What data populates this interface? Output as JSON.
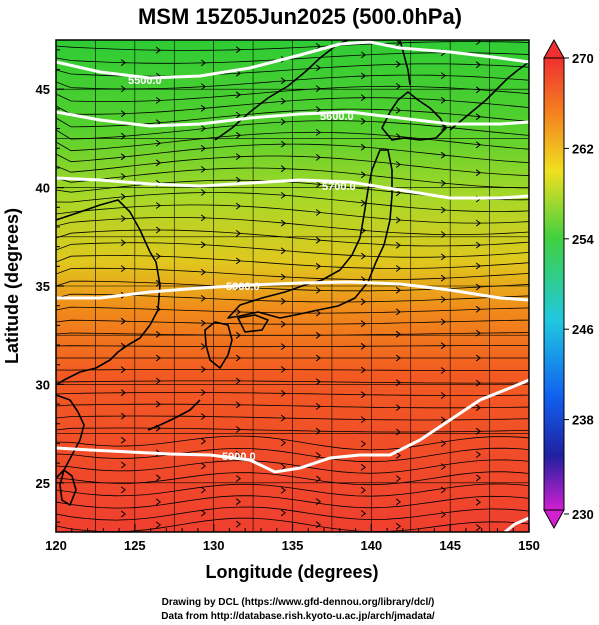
{
  "title": "MSM 15Z05Jun2025 (500.0hPa)",
  "x_axis": {
    "label": "Longitude (degrees)",
    "min": 120,
    "max": 150,
    "ticks": [
      "120",
      "125",
      "130",
      "135",
      "140",
      "145",
      "150"
    ]
  },
  "y_axis": {
    "label": "Latitude  (degrees)",
    "min": 22.5,
    "max": 47.5,
    "ticks": [
      "25",
      "30",
      "35",
      "40",
      "45"
    ]
  },
  "colorbar": {
    "min": 230,
    "max": 270,
    "ticks": [
      "270",
      "262",
      "254",
      "246",
      "238",
      "230"
    ]
  },
  "contours": [
    {
      "label": "5500.0",
      "value": 5500
    },
    {
      "label": "5600.0",
      "value": 5600
    },
    {
      "label": "5700.0",
      "value": 5700
    },
    {
      "label": "5800.0",
      "value": 5800
    },
    {
      "label": "5900.0",
      "value": 5900
    }
  ],
  "credits": [
    "Drawing by DCL (https://www.gfd-dennou.org/library/dcl/)",
    "Data from http://database.rish.kyoto-u.ac.jp/arch/jmadata/"
  ]
}
